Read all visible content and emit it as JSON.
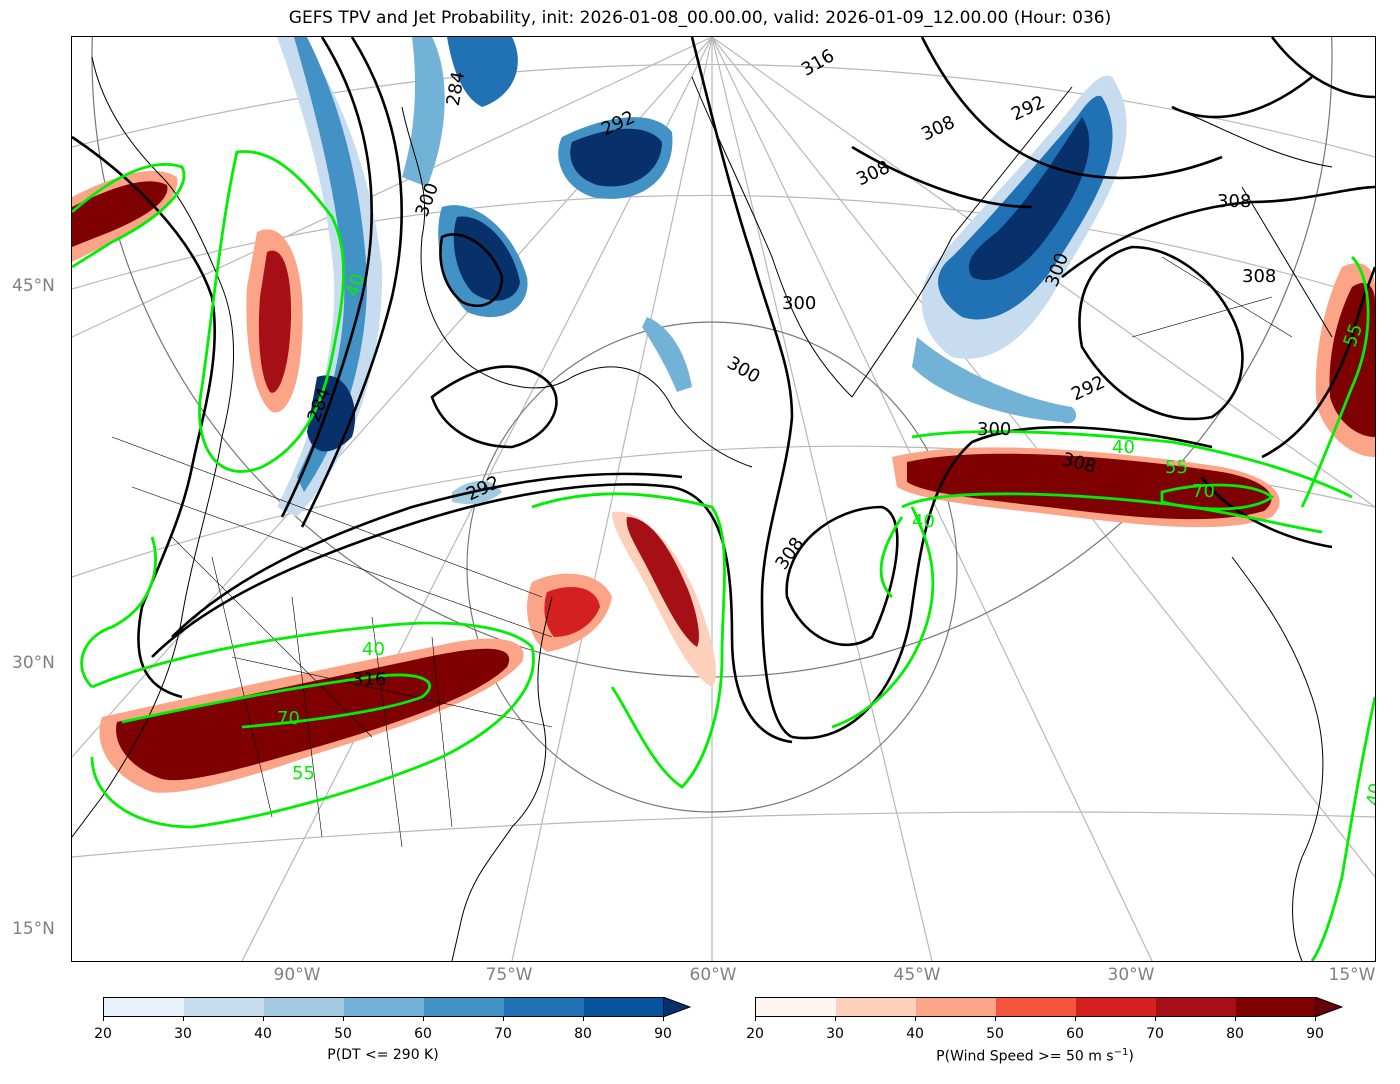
{
  "title": "GEFS TPV and Jet Probability, init: 2026-01-08_00.00.00, valid: 2026-01-09_12.00.00 (Hour: 036)",
  "lat_labels": [
    "45°N",
    "30°N",
    "15°N"
  ],
  "lon_labels": [
    "90°W",
    "75°W",
    "60°W",
    "45°W",
    "30°W",
    "15°W"
  ],
  "theta_contour_labels": [
    "284",
    "292",
    "300",
    "308",
    "316"
  ],
  "jet_contour_labels": [
    "40",
    "55",
    "70"
  ],
  "colorbar_blue": {
    "label": "P(DT <= 290 K)",
    "ticks": [
      "20",
      "30",
      "40",
      "50",
      "60",
      "70",
      "80",
      "90"
    ],
    "colors": [
      "#e8f1fa",
      "#c7dcef",
      "#a2cbe2",
      "#72b2d7",
      "#4292c6",
      "#2171b5",
      "#08519c"
    ],
    "extend_color": "#08306b"
  },
  "colorbar_red": {
    "label_main": "P(Wind Speed >= 50 m s",
    "label_sup": "−1",
    "label_close": ")",
    "ticks": [
      "20",
      "30",
      "40",
      "50",
      "60",
      "70",
      "80",
      "90"
    ],
    "colors": [
      "#fff5f0",
      "#fdd0bc",
      "#fca487",
      "#f6553d",
      "#d42020",
      "#a50f15",
      "#7f0000"
    ],
    "extend_color": "#67000d"
  }
}
